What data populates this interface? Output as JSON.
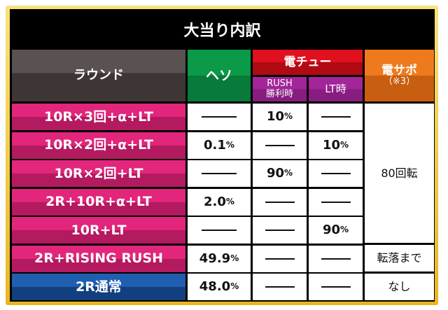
{
  "title": "大当り内訳",
  "headers": {
    "round": "ラウンド",
    "heso": "ヘソ",
    "denchu": "電チュー",
    "rush": "RUSH",
    "rush2": "勝利時",
    "lt": "LT時",
    "densapo": "電サポ",
    "densapo_note": "（※3）"
  },
  "rows": [
    {
      "round": "10R×3回+α+LT",
      "heso": null,
      "rush": "10",
      "lt": null
    },
    {
      "round": "10R×2回+α+LT",
      "heso": "0.1",
      "rush": null,
      "lt": "10"
    },
    {
      "round": "10R×2回+LT",
      "heso": null,
      "rush": "90",
      "lt": null
    },
    {
      "round": "2R+10R+α+LT",
      "heso": "2.0",
      "rush": null,
      "lt": null
    },
    {
      "round": "10R+LT",
      "heso": null,
      "rush": null,
      "lt": "90"
    },
    {
      "round": "2R+RISING RUSH",
      "heso": "49.9",
      "rush": null,
      "lt": null
    },
    {
      "round": "2R通常",
      "heso": "48.0",
      "rush": null,
      "lt": null
    }
  ],
  "densapo": {
    "merged": "80回転",
    "rising": "転落まで",
    "normal": "なし"
  },
  "pct": "%"
}
